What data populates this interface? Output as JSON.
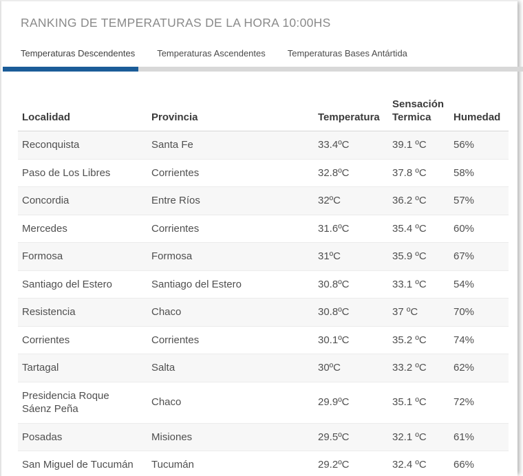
{
  "header": {
    "title": "RANKING DE TEMPERATURAS DE LA HORA 10:00HS"
  },
  "tabs": [
    {
      "label": "Temperaturas Descendentes",
      "active": true
    },
    {
      "label": "Temperaturas Ascendentes",
      "active": false
    },
    {
      "label": "Temperaturas Bases Antártida",
      "active": false
    }
  ],
  "table": {
    "headers": [
      "Localidad",
      "Provincia",
      "Temperatura",
      "Sensación Termica",
      "Humedad"
    ],
    "rows": [
      {
        "localidad": "Reconquista",
        "provincia": "Santa Fe",
        "temperatura": "33.4ºC",
        "sensacion": "39.1 ºC",
        "humedad": "56%"
      },
      {
        "localidad": "Paso de Los Libres",
        "provincia": "Corrientes",
        "temperatura": "32.8ºC",
        "sensacion": "37.8 ºC",
        "humedad": "58%"
      },
      {
        "localidad": "Concordia",
        "provincia": "Entre Ríos",
        "temperatura": "32ºC",
        "sensacion": "36.2 ºC",
        "humedad": "57%"
      },
      {
        "localidad": "Mercedes",
        "provincia": "Corrientes",
        "temperatura": "31.6ºC",
        "sensacion": "35.4 ºC",
        "humedad": "60%"
      },
      {
        "localidad": "Formosa",
        "provincia": "Formosa",
        "temperatura": "31ºC",
        "sensacion": "35.9 ºC",
        "humedad": "67%"
      },
      {
        "localidad": "Santiago del Estero",
        "provincia": "Santiago del Estero",
        "temperatura": "30.8ºC",
        "sensacion": "33.1 ºC",
        "humedad": "54%"
      },
      {
        "localidad": "Resistencia",
        "provincia": "Chaco",
        "temperatura": "30.8ºC",
        "sensacion": "37 ºC",
        "humedad": "70%"
      },
      {
        "localidad": "Corrientes",
        "provincia": "Corrientes",
        "temperatura": "30.1ºC",
        "sensacion": "35.2 ºC",
        "humedad": "74%"
      },
      {
        "localidad": "Tartagal",
        "provincia": "Salta",
        "temperatura": "30ºC",
        "sensacion": "33.2 ºC",
        "humedad": "62%"
      },
      {
        "localidad": "Presidencia Roque Sáenz Peña",
        "provincia": "Chaco",
        "temperatura": "29.9ºC",
        "sensacion": "35.1 ºC",
        "humedad": "72%"
      },
      {
        "localidad": "Posadas",
        "provincia": "Misiones",
        "temperatura": "29.5ºC",
        "sensacion": "32.1 ºC",
        "humedad": "61%"
      },
      {
        "localidad": "San Miguel de Tucumán",
        "provincia": "Tucumán",
        "temperatura": "29.2ºC",
        "sensacion": "32.4 ºC",
        "humedad": "66%"
      }
    ]
  },
  "colors": {
    "accent_blue": "#1b5c98",
    "tab_track_gray": "#d8d8d8",
    "row_stripe": "#f7f7f7",
    "title_gray": "#8a8a8a"
  }
}
